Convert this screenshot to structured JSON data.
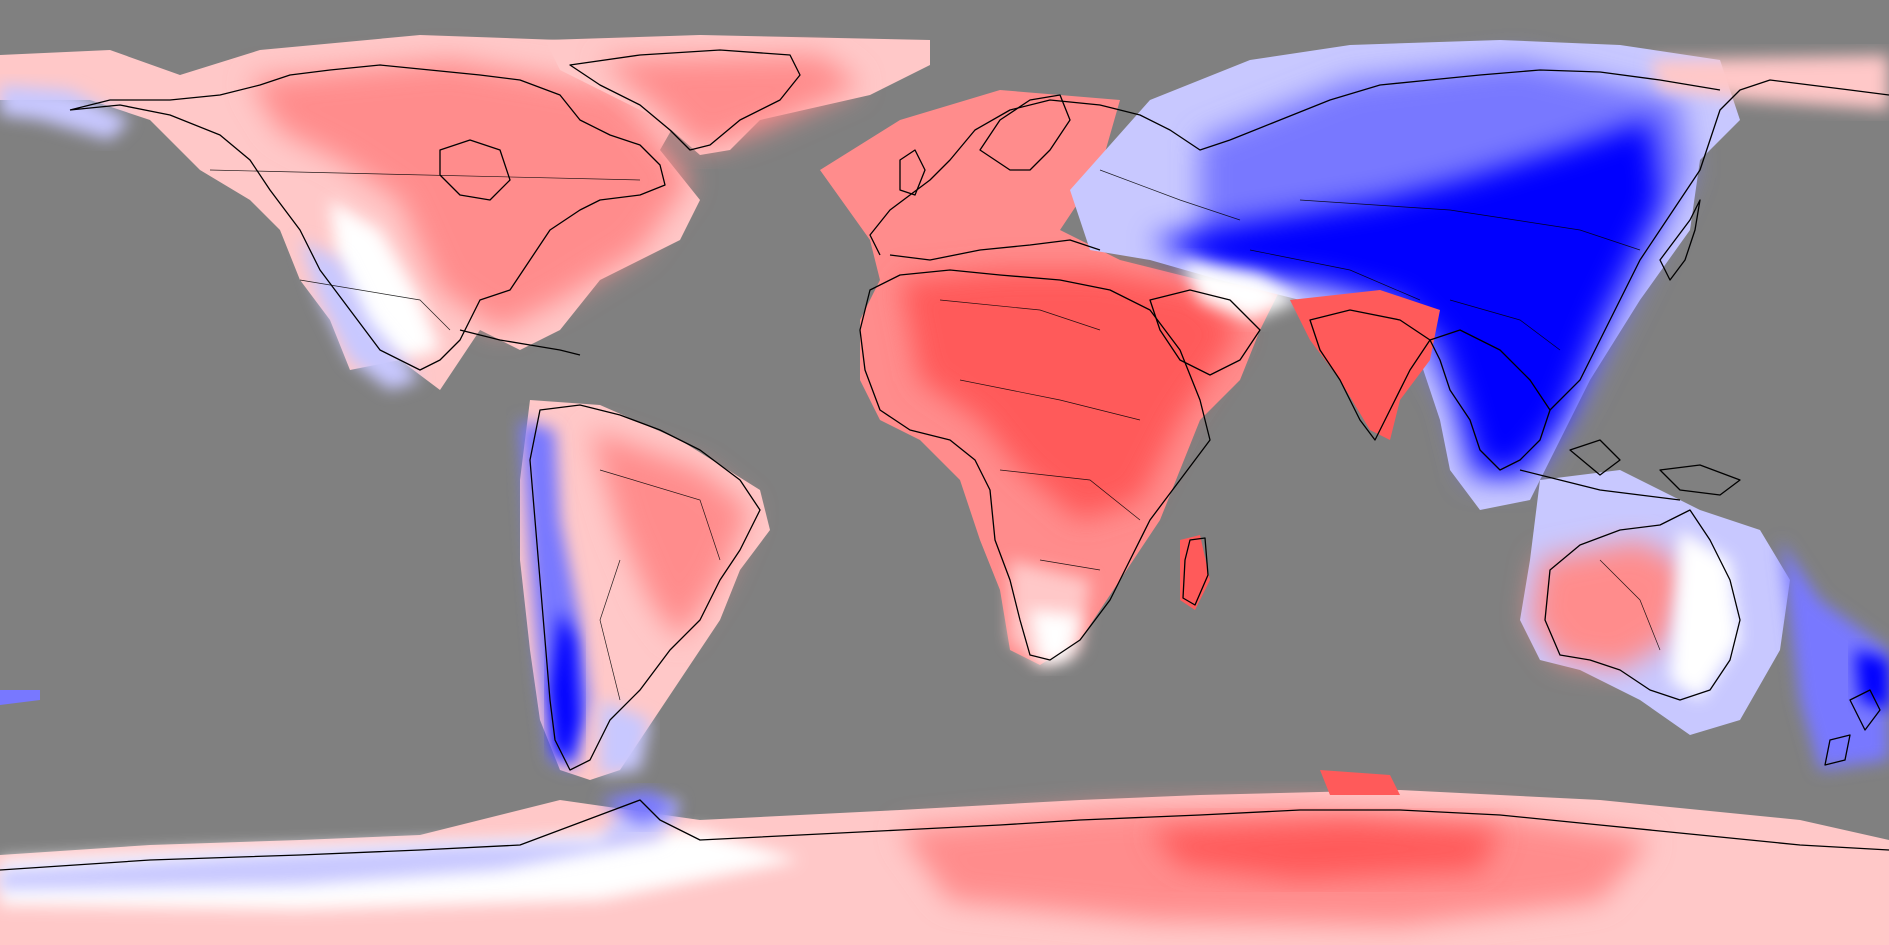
{
  "map": {
    "projection": "equirectangular",
    "description_colors": {
      "ocean_mask": "#808080",
      "strong_positive": "#ff5a5a",
      "positive": "#ff8c8c",
      "weak_positive": "#ffc8c8",
      "neutral": "#ffffff",
      "weak_negative": "#c8c8ff",
      "negative": "#7878ff",
      "strong_negative": "#0000ff",
      "coastline": "#000000"
    }
  }
}
